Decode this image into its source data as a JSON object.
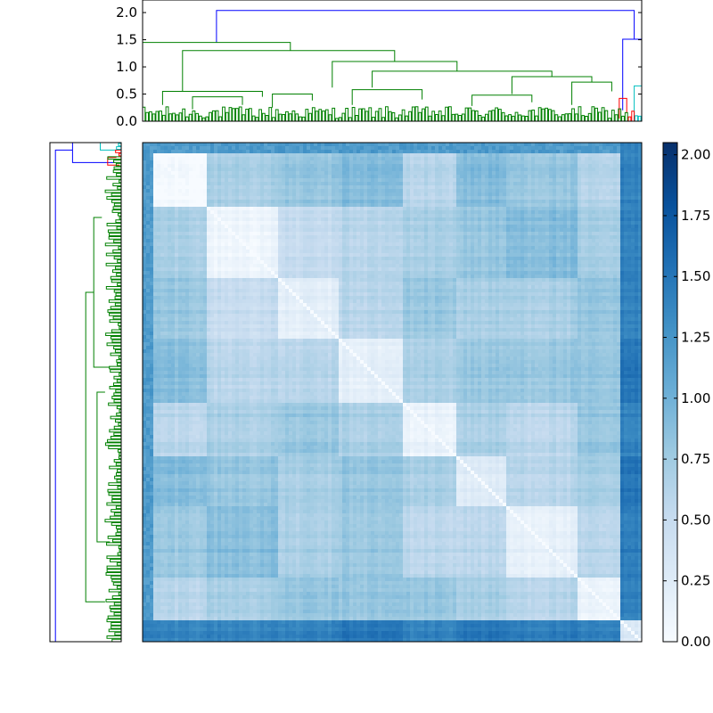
{
  "chart_data": [
    {
      "type": "dendrogram",
      "orientation": "top",
      "ylim": [
        0.0,
        2.1
      ],
      "yticks": [
        "0.0",
        "0.5",
        "1.0",
        "1.5",
        "2.0"
      ],
      "ytick_values": [
        0.0,
        0.5,
        1.0,
        1.5,
        2.0
      ],
      "leaf_count": 300,
      "link_colors": {
        "main": "#008000",
        "red": "#ff0000",
        "cyan": "#00bfbf",
        "root": "#0000ff"
      },
      "clusters": [
        {
          "name": "",
          "color": "green",
          "leaf_start": 0,
          "leaf_end": 292
        },
        {
          "name": "",
          "color": "red",
          "leaf_start": 292,
          "leaf_end": 296
        },
        {
          "name": "",
          "color": "cyan",
          "leaf_start": 296,
          "leaf_end": 300
        }
      ],
      "links": [
        {
          "color": "blue",
          "x": [
            0.148,
            0.148,
            0.985,
            0.985
          ],
          "y": [
            1.45,
            2.04,
            2.04,
            1.51
          ]
        },
        {
          "color": "green",
          "x": [
            0.0,
            0.0,
            0.296,
            0.296
          ],
          "y": [
            0.45,
            1.45,
            1.45,
            1.3
          ]
        },
        {
          "color": "green",
          "x": [
            0.08,
            0.08,
            0.505,
            0.505
          ],
          "y": [
            0.55,
            1.3,
            1.3,
            1.1
          ]
        },
        {
          "color": "green",
          "x": [
            0.38,
            0.38,
            0.63,
            0.63
          ],
          "y": [
            0.62,
            1.1,
            1.1,
            0.92
          ]
        },
        {
          "color": "green",
          "x": [
            0.46,
            0.46,
            0.82,
            0.82
          ],
          "y": [
            0.62,
            0.92,
            0.92,
            0.82
          ]
        },
        {
          "color": "green",
          "x": [
            0.74,
            0.74,
            0.9,
            0.9
          ],
          "y": [
            0.5,
            0.82,
            0.82,
            0.72
          ]
        },
        {
          "color": "green",
          "x": [
            0.86,
            0.86,
            0.94,
            0.94
          ],
          "y": [
            0.3,
            0.72,
            0.72,
            0.55
          ]
        },
        {
          "color": "green",
          "x": [
            0.04,
            0.04,
            0.24,
            0.24
          ],
          "y": [
            0.3,
            0.55,
            0.55,
            0.45
          ]
        },
        {
          "color": "green",
          "x": [
            0.1,
            0.1,
            0.2,
            0.2
          ],
          "y": [
            0.22,
            0.45,
            0.45,
            0.3
          ]
        },
        {
          "color": "green",
          "x": [
            0.26,
            0.26,
            0.34,
            0.34
          ],
          "y": [
            0.25,
            0.5,
            0.5,
            0.38
          ]
        },
        {
          "color": "green",
          "x": [
            0.42,
            0.42,
            0.56,
            0.56
          ],
          "y": [
            0.3,
            0.58,
            0.58,
            0.4
          ]
        },
        {
          "color": "green",
          "x": [
            0.66,
            0.66,
            0.78,
            0.78
          ],
          "y": [
            0.28,
            0.48,
            0.48,
            0.35
          ]
        },
        {
          "color": "blue",
          "x": [
            0.962,
            0.962,
            1.0,
            1.0
          ],
          "y": [
            0.2,
            1.51,
            1.51,
            0.65
          ]
        },
        {
          "color": "red",
          "x": [
            0.955,
            0.955,
            0.97,
            0.97
          ],
          "y": [
            0.05,
            0.42,
            0.42,
            0.15
          ]
        },
        {
          "color": "cyan",
          "x": [
            0.985,
            0.985,
            1.0,
            1.0
          ],
          "y": [
            0.05,
            0.65,
            0.65,
            0.3
          ]
        }
      ]
    },
    {
      "type": "dendrogram",
      "orientation": "left",
      "leaf_count": 300,
      "links": [
        {
          "color": "blue",
          "x": [
            0.0,
            0.0,
            0.985,
            0.985
          ],
          "y": [
            1.45,
            2.04,
            2.04,
            1.51
          ]
        },
        {
          "color": "blue",
          "x": [
            0.96,
            0.96,
            1.0,
            1.0
          ],
          "y": [
            0.2,
            1.51,
            1.51,
            0.65
          ]
        },
        {
          "color": "green",
          "x": [
            0.08,
            0.08,
            0.7,
            0.7
          ],
          "y": [
            0.5,
            1.1,
            1.1,
            0.85
          ]
        },
        {
          "color": "green",
          "x": [
            0.2,
            0.2,
            0.5,
            0.5
          ],
          "y": [
            0.35,
            0.75,
            0.75,
            0.5
          ]
        },
        {
          "color": "green",
          "x": [
            0.55,
            0.55,
            0.85,
            0.85
          ],
          "y": [
            0.35,
            0.85,
            0.85,
            0.6
          ]
        },
        {
          "color": "red",
          "x": [
            0.955,
            0.955,
            0.97,
            0.97
          ],
          "y": [
            0.05,
            0.42,
            0.42,
            0.15
          ]
        },
        {
          "color": "cyan",
          "x": [
            0.985,
            0.985,
            1.0,
            1.0
          ],
          "y": [
            0.05,
            0.65,
            0.65,
            0.3
          ]
        }
      ]
    },
    {
      "type": "heatmap",
      "rows": 300,
      "cols": 300,
      "colormap": "Blues",
      "vmin": 0.0,
      "vmax": 2.05,
      "block_boundaries": [
        0.0,
        0.13,
        0.27,
        0.39,
        0.52,
        0.63,
        0.73,
        0.87,
        0.96,
        1.0
      ],
      "block_means": [
        [
          0.02,
          0.7,
          0.8,
          0.9,
          0.6,
          0.9,
          0.8,
          0.6,
          1.4
        ],
        [
          0.7,
          0.1,
          0.5,
          0.6,
          0.7,
          0.8,
          0.9,
          0.7,
          1.4
        ],
        [
          0.8,
          0.5,
          0.2,
          0.6,
          0.8,
          0.7,
          0.7,
          0.8,
          1.4
        ],
        [
          0.9,
          0.6,
          0.6,
          0.2,
          0.7,
          0.8,
          0.8,
          0.8,
          1.5
        ],
        [
          0.6,
          0.7,
          0.8,
          0.7,
          0.15,
          0.7,
          0.6,
          0.8,
          1.4
        ],
        [
          0.9,
          0.8,
          0.7,
          0.8,
          0.7,
          0.25,
          0.6,
          0.7,
          1.5
        ],
        [
          0.8,
          0.9,
          0.7,
          0.8,
          0.6,
          0.6,
          0.2,
          0.6,
          1.45
        ],
        [
          0.6,
          0.7,
          0.8,
          0.8,
          0.8,
          0.7,
          0.6,
          0.1,
          1.4
        ],
        [
          1.4,
          1.4,
          1.4,
          1.5,
          1.4,
          1.5,
          1.45,
          1.4,
          0.3
        ]
      ]
    },
    {
      "type": "colorbar",
      "colormap": "Blues",
      "range": [
        0.0,
        2.05
      ],
      "ticks": [
        "0.00",
        "0.25",
        "0.50",
        "0.75",
        "1.00",
        "1.25",
        "1.50",
        "1.75",
        "2.00"
      ],
      "tick_values": [
        0.0,
        0.25,
        0.5,
        0.75,
        1.0,
        1.25,
        1.5,
        1.75,
        2.0
      ]
    }
  ]
}
